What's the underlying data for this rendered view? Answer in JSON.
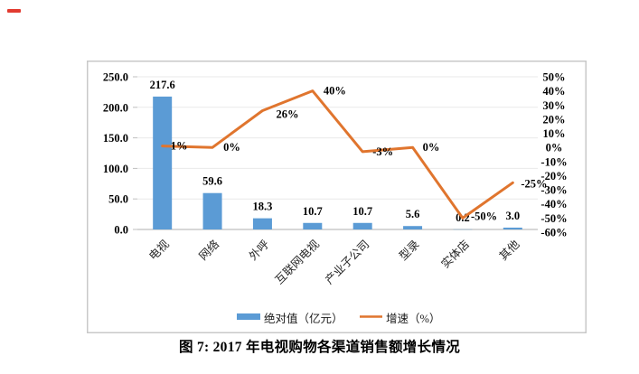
{
  "page": {
    "caption": "图 7: 2017 年电视购物各渠道销售额增长情况",
    "red_mark_color": "#e23b30",
    "background": "#ffffff"
  },
  "chart_data": {
    "type": "bar",
    "subtype": "combo-bar-line-dual-axis",
    "title": "",
    "categories": [
      "电视",
      "网络",
      "外呼",
      "互联网电视",
      "产业子公司",
      "型录",
      "实体店",
      "其他"
    ],
    "series": [
      {
        "name": "绝对值（亿元）",
        "type": "bar",
        "axis": "left",
        "color": "#5B9BD5",
        "values": [
          217.6,
          59.6,
          18.3,
          10.7,
          10.7,
          5.6,
          0.2,
          3.0
        ],
        "labels": [
          "217.6",
          "59.6",
          "18.3",
          "10.7",
          "10.7",
          "5.6",
          "0.2",
          "3.0"
        ]
      },
      {
        "name": "增速（%）",
        "type": "line",
        "axis": "right",
        "color": "#E0752E",
        "values": [
          1,
          0,
          26,
          40,
          -3,
          0,
          -50,
          -25
        ],
        "labels": [
          "1%",
          "0%",
          "26%",
          "40%",
          "-3%",
          "0%",
          "-50%",
          "-25%"
        ]
      }
    ],
    "left_axis": {
      "min": 0,
      "max": 250,
      "step": 50,
      "tick_labels": [
        "250.0",
        "200.0",
        "150.0",
        "100.0",
        "50.0",
        "0.0"
      ]
    },
    "right_axis": {
      "min": -60,
      "max": 50,
      "step": 10,
      "tick_labels": [
        "50%",
        "40%",
        "30%",
        "20%",
        "10%",
        "0%",
        "-10%",
        "-20%",
        "-30%",
        "-40%",
        "-50%",
        "-60%"
      ]
    },
    "grid": "horizontal-light",
    "legend_position": "bottom-center-inside",
    "legend": [
      {
        "label": "绝对值（亿元）",
        "swatch": "bar",
        "color": "#5B9BD5"
      },
      {
        "label": "增速（%）",
        "swatch": "line",
        "color": "#E0752E"
      }
    ],
    "frame_color": "#c8c8c8",
    "gridline_color": "#e9e9e9",
    "axisline_color": "#bfbfbf",
    "label_color": "#000000"
  }
}
